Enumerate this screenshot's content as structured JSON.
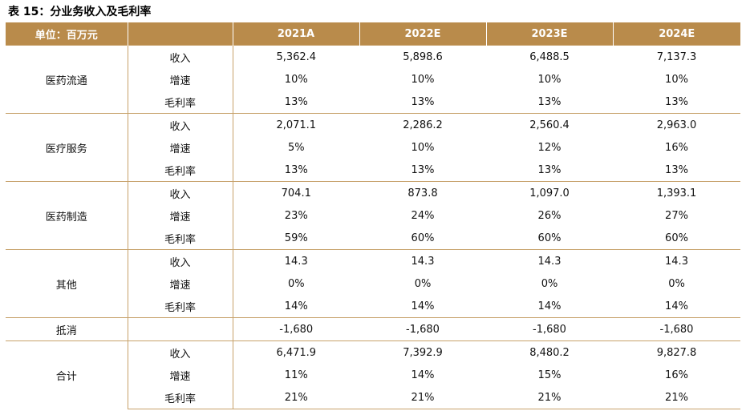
{
  "title": "表 15：分业务收入及毛利率",
  "colors": {
    "header_bg": "#b98b4b",
    "header_text": "#ffffff",
    "border": "#c7a16a"
  },
  "table": {
    "headers": [
      "单位：百万元",
      "",
      "2021A",
      "2022E",
      "2023E",
      "2024E"
    ],
    "groups": [
      {
        "name": "医药流通",
        "rows": [
          {
            "metric": "收入",
            "values": [
              "5,362.4",
              "5,898.6",
              "6,488.5",
              "7,137.3"
            ]
          },
          {
            "metric": "增速",
            "values": [
              "10%",
              "10%",
              "10%",
              "10%"
            ]
          },
          {
            "metric": "毛利率",
            "values": [
              "13%",
              "13%",
              "13%",
              "13%"
            ]
          }
        ]
      },
      {
        "name": "医疗服务",
        "rows": [
          {
            "metric": "收入",
            "values": [
              "2,071.1",
              "2,286.2",
              "2,560.4",
              "2,963.0"
            ]
          },
          {
            "metric": "增速",
            "values": [
              "5%",
              "10%",
              "12%",
              "16%"
            ]
          },
          {
            "metric": "毛利率",
            "values": [
              "13%",
              "13%",
              "13%",
              "13%"
            ]
          }
        ]
      },
      {
        "name": "医药制造",
        "rows": [
          {
            "metric": "收入",
            "values": [
              "704.1",
              "873.8",
              "1,097.0",
              "1,393.1"
            ]
          },
          {
            "metric": "增速",
            "values": [
              "23%",
              "24%",
              "26%",
              "27%"
            ]
          },
          {
            "metric": "毛利率",
            "values": [
              "59%",
              "60%",
              "60%",
              "60%"
            ]
          }
        ]
      },
      {
        "name": "其他",
        "rows": [
          {
            "metric": "收入",
            "values": [
              "14.3",
              "14.3",
              "14.3",
              "14.3"
            ]
          },
          {
            "metric": "增速",
            "values": [
              "0%",
              "0%",
              "0%",
              "0%"
            ]
          },
          {
            "metric": "毛利率",
            "values": [
              "14%",
              "14%",
              "14%",
              "14%"
            ]
          }
        ]
      },
      {
        "name": "抵消",
        "rows": [
          {
            "metric": "",
            "values": [
              "-1,680",
              "-1,680",
              "-1,680",
              "-1,680"
            ]
          }
        ]
      },
      {
        "name": "合计",
        "rows": [
          {
            "metric": "收入",
            "values": [
              "6,471.9",
              "7,392.9",
              "8,480.2",
              "9,827.8"
            ]
          },
          {
            "metric": "增速",
            "values": [
              "11%",
              "14%",
              "15%",
              "16%"
            ]
          },
          {
            "metric": "毛利率",
            "values": [
              "21%",
              "21%",
              "21%",
              "21%"
            ]
          }
        ]
      }
    ]
  }
}
